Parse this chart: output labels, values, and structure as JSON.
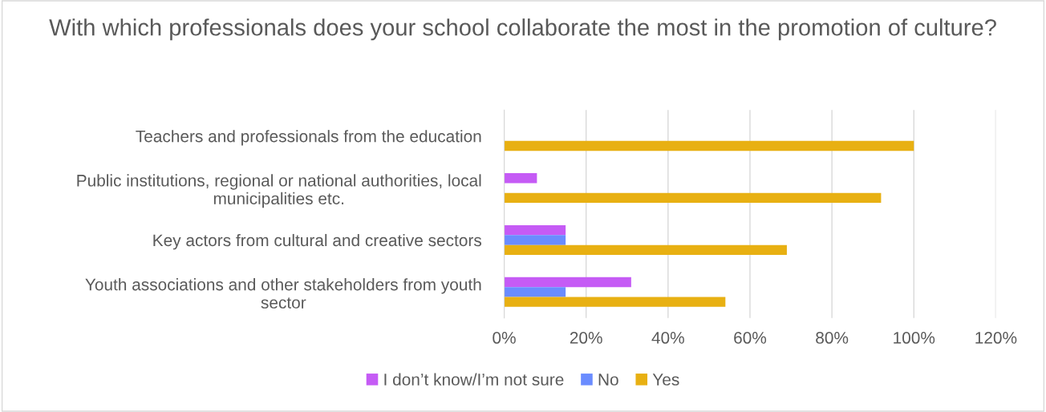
{
  "chart_data": {
    "type": "bar",
    "orientation": "horizontal",
    "title": "With which professionals does your school collaborate the most in the promotion of culture?",
    "categories": [
      "Teachers and professionals from the education",
      "Public institutions, regional or national authorities, local\nmunicipalities etc.",
      "Key actors from cultural and creative sectors",
      "Youth associations and other stakeholders from youth\nsector"
    ],
    "series": [
      {
        "name": "I don’t know/I’m not sure",
        "color": "#c55bf5",
        "values": [
          null,
          8,
          15,
          31
        ]
      },
      {
        "name": "No",
        "color": "#6a8cff",
        "values": [
          null,
          null,
          15,
          15
        ]
      },
      {
        "name": "Yes",
        "color": "#e8b012",
        "values": [
          100,
          92,
          69,
          54
        ]
      }
    ],
    "xlim": [
      0,
      120
    ],
    "xticks": [
      {
        "value": 0,
        "label": "0%"
      },
      {
        "value": 20,
        "label": "20%"
      },
      {
        "value": 40,
        "label": "40%"
      },
      {
        "value": 60,
        "label": "60%"
      },
      {
        "value": 80,
        "label": "80%"
      },
      {
        "value": 100,
        "label": "100%"
      },
      {
        "value": 120,
        "label": "120%"
      }
    ],
    "grid": "x",
    "legend": "bottom"
  }
}
